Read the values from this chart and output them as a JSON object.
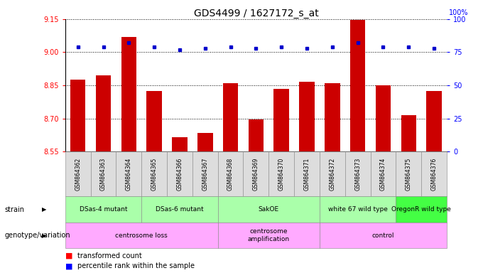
{
  "title": "GDS4499 / 1627172_s_at",
  "samples": [
    "GSM864362",
    "GSM864363",
    "GSM864364",
    "GSM864365",
    "GSM864366",
    "GSM864367",
    "GSM864368",
    "GSM864369",
    "GSM864370",
    "GSM864371",
    "GSM864372",
    "GSM864373",
    "GSM864374",
    "GSM864375",
    "GSM864376"
  ],
  "bar_values": [
    8.875,
    8.895,
    9.07,
    8.825,
    8.615,
    8.635,
    8.86,
    8.695,
    8.835,
    8.865,
    8.86,
    9.145,
    8.85,
    8.715,
    8.825
  ],
  "dot_values": [
    79,
    79,
    82,
    79,
    77,
    78,
    79,
    78,
    79,
    78,
    79,
    82,
    79,
    79,
    78
  ],
  "ylim_left": [
    8.55,
    9.15
  ],
  "ylim_right": [
    0,
    100
  ],
  "yticks_left": [
    8.55,
    8.7,
    8.85,
    9.0,
    9.15
  ],
  "yticks_right": [
    0,
    25,
    50,
    75,
    100
  ],
  "bar_color": "#cc0000",
  "dot_color": "#0000cc",
  "strain_labels": [
    {
      "label": "DSas-4 mutant",
      "start": 0,
      "end": 2,
      "color": "#aaffaa"
    },
    {
      "label": "DSas-6 mutant",
      "start": 3,
      "end": 5,
      "color": "#aaffaa"
    },
    {
      "label": "SakOE",
      "start": 6,
      "end": 9,
      "color": "#aaffaa"
    },
    {
      "label": "white 67 wild type",
      "start": 10,
      "end": 12,
      "color": "#aaffaa"
    },
    {
      "label": "OregonR wild type",
      "start": 13,
      "end": 14,
      "color": "#44ff44"
    }
  ],
  "genotype_labels": [
    {
      "label": "centrosome loss",
      "start": 0,
      "end": 5,
      "color": "#ffaaff"
    },
    {
      "label": "centrosome\namplification",
      "start": 6,
      "end": 9,
      "color": "#ffaaff"
    },
    {
      "label": "control",
      "start": 10,
      "end": 14,
      "color": "#ffaaff"
    }
  ],
  "strain_row_label": "strain",
  "genotype_row_label": "genotype/variation"
}
